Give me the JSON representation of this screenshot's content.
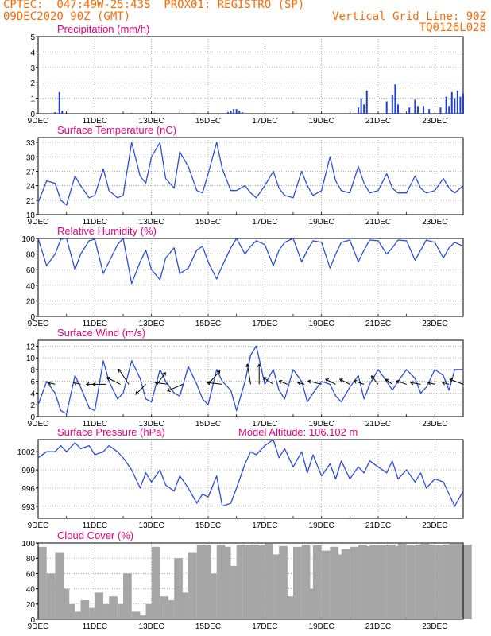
{
  "header": {
    "line1_left": "CPTEC:  047:49W-25:43S  PROX01: REGISTRO (SP)",
    "line2_left": "09DEC2020 90Z (GMT)",
    "line2_right": "Vertical Grid Line: 90Z",
    "line3_right": "TQ0126L028"
  },
  "colors": {
    "header_text": "#ff6a00",
    "title_text": "#e8007a",
    "series_line": "#2a4fd6",
    "precip_bars": "#1f3fd8",
    "cloud_bars": "#a6a6a6",
    "wind_arrows": "#000000"
  },
  "x_tick_labels": [
    "9DEC",
    "11DEC",
    "13DEC",
    "15DEC",
    "17DEC",
    "19DEC",
    "21DEC",
    "23DEC"
  ],
  "chart_data": [
    {
      "type": "bar",
      "title": "Precipitation (mm/h)",
      "ylim": [
        0,
        5
      ],
      "yticks": [
        0,
        1,
        2,
        3,
        4,
        5
      ],
      "x_range_days": [
        9,
        24
      ],
      "x": [
        9.6,
        9.75,
        9.85,
        12.3,
        13.1,
        14.5,
        15.7,
        15.8,
        15.9,
        16.0,
        16.1,
        16.2,
        20.3,
        20.4,
        20.5,
        20.6,
        21.3,
        21.5,
        21.6,
        21.7,
        22.1,
        22.3,
        22.4,
        22.6,
        22.8,
        23.2,
        23.4,
        23.5,
        23.6,
        23.7,
        23.8,
        23.9,
        24.0
      ],
      "values": [
        0.1,
        1.4,
        0.2,
        0.05,
        0.05,
        0.05,
        0.1,
        0.2,
        0.3,
        0.3,
        0.2,
        0.1,
        0.4,
        1.0,
        0.6,
        1.5,
        0.8,
        1.2,
        1.9,
        0.6,
        0.4,
        0.9,
        0.5,
        0.5,
        0.3,
        0.4,
        1.1,
        0.5,
        1.4,
        1.0,
        1.5,
        1.1,
        1.3
      ]
    },
    {
      "type": "line",
      "title": "Surface Temperature (nC)",
      "ylim": [
        18,
        34
      ],
      "yticks": [
        18,
        21,
        24,
        27,
        30,
        33
      ],
      "x": [
        9.0,
        9.3,
        9.6,
        9.8,
        10.0,
        10.3,
        10.5,
        10.8,
        11.0,
        11.3,
        11.5,
        11.8,
        12.0,
        12.3,
        12.6,
        12.8,
        13.0,
        13.3,
        13.5,
        13.8,
        14.0,
        14.3,
        14.6,
        14.8,
        15.0,
        15.3,
        15.5,
        15.8,
        16.0,
        16.3,
        16.5,
        16.7,
        17.0,
        17.3,
        17.5,
        17.7,
        18.0,
        18.3,
        18.5,
        18.7,
        19.0,
        19.3,
        19.5,
        19.7,
        20.0,
        20.3,
        20.5,
        20.7,
        21.0,
        21.3,
        21.5,
        21.7,
        22.0,
        22.3,
        22.5,
        22.7,
        23.0,
        23.3,
        23.5,
        23.7,
        24.0
      ],
      "values": [
        20.5,
        25.0,
        24.5,
        21.0,
        20.0,
        26.0,
        24.0,
        21.5,
        22.0,
        27.5,
        23.0,
        21.5,
        22.0,
        33.0,
        26.0,
        24.5,
        30.0,
        33.0,
        25.5,
        23.5,
        31.0,
        28.0,
        23.0,
        22.5,
        26.5,
        33.0,
        27.5,
        23.0,
        23.0,
        24.0,
        22.5,
        21.5,
        24.0,
        27.0,
        23.5,
        22.0,
        21.5,
        27.0,
        24.0,
        22.0,
        23.0,
        30.0,
        25.0,
        23.0,
        22.5,
        28.0,
        24.5,
        22.5,
        23.0,
        26.5,
        23.5,
        22.5,
        22.5,
        26.0,
        23.5,
        22.5,
        23.0,
        25.5,
        23.5,
        22.5,
        24.0
      ]
    },
    {
      "type": "line",
      "title": "Relative Humidity (%)",
      "ylim": [
        0,
        100
      ],
      "yticks": [
        0,
        20,
        40,
        60,
        80,
        100
      ],
      "x": [
        9.0,
        9.3,
        9.6,
        9.8,
        10.0,
        10.3,
        10.5,
        10.8,
        11.0,
        11.3,
        11.5,
        11.8,
        12.0,
        12.3,
        12.6,
        12.8,
        13.0,
        13.3,
        13.5,
        13.8,
        14.0,
        14.3,
        14.6,
        14.8,
        15.0,
        15.3,
        15.5,
        15.8,
        16.0,
        16.3,
        16.5,
        16.7,
        17.0,
        17.3,
        17.5,
        17.7,
        18.0,
        18.3,
        18.5,
        18.7,
        19.0,
        19.3,
        19.5,
        19.7,
        20.0,
        20.3,
        20.5,
        20.7,
        21.0,
        21.3,
        21.5,
        21.7,
        22.0,
        22.3,
        22.5,
        22.7,
        23.0,
        23.3,
        23.5,
        23.7,
        24.0
      ],
      "values": [
        100.0,
        65.0,
        80.0,
        99.0,
        100.0,
        60.0,
        80.0,
        97.0,
        99.0,
        55.0,
        70.0,
        92.0,
        100.0,
        42.0,
        70.0,
        85.0,
        60.0,
        47.0,
        75.0,
        88.0,
        55.0,
        62.0,
        85.0,
        90.0,
        70.0,
        48.0,
        65.0,
        88.0,
        100.0,
        80.0,
        90.0,
        97.0,
        92.0,
        65.0,
        85.0,
        95.0,
        100.0,
        70.0,
        85.0,
        97.0,
        95.0,
        62.0,
        80.0,
        95.0,
        98.0,
        70.0,
        85.0,
        98.0,
        97.0,
        80.0,
        88.0,
        98.0,
        97.0,
        72.0,
        85.0,
        98.0,
        95.0,
        75.0,
        88.0,
        95.0,
        90.0
      ]
    },
    {
      "type": "line",
      "title": "Surface Wind (m/s)",
      "ylim": [
        0,
        13
      ],
      "yticks": [
        0,
        2,
        4,
        6,
        8,
        10,
        12
      ],
      "x": [
        9.0,
        9.3,
        9.6,
        9.8,
        10.0,
        10.3,
        10.5,
        10.8,
        11.0,
        11.3,
        11.5,
        11.8,
        12.0,
        12.3,
        12.6,
        12.8,
        13.0,
        13.3,
        13.5,
        13.8,
        14.0,
        14.3,
        14.6,
        14.8,
        15.0,
        15.3,
        15.5,
        15.8,
        16.0,
        16.3,
        16.5,
        16.7,
        17.0,
        17.3,
        17.5,
        17.7,
        18.0,
        18.3,
        18.5,
        18.7,
        19.0,
        19.3,
        19.5,
        19.7,
        20.0,
        20.3,
        20.5,
        20.7,
        21.0,
        21.3,
        21.5,
        21.7,
        22.0,
        22.3,
        22.5,
        22.7,
        23.0,
        23.3,
        23.5,
        23.7,
        24.0
      ],
      "values": [
        2.0,
        6.0,
        4.0,
        1.0,
        0.5,
        7.0,
        5.0,
        1.5,
        1.0,
        9.5,
        6.0,
        3.0,
        4.0,
        9.5,
        6.5,
        3.0,
        2.5,
        8.0,
        6.0,
        4.0,
        3.5,
        8.5,
        5.5,
        3.0,
        2.0,
        8.0,
        6.0,
        4.5,
        1.0,
        6.0,
        10.5,
        12.0,
        5.5,
        8.0,
        4.5,
        3.0,
        8.0,
        6.0,
        2.5,
        4.0,
        6.0,
        5.5,
        3.5,
        2.5,
        5.0,
        7.0,
        3.0,
        5.5,
        8.0,
        6.0,
        4.5,
        6.0,
        8.0,
        6.5,
        4.0,
        5.0,
        8.0,
        7.0,
        4.5,
        8.0,
        8.0
      ],
      "wind_vectors": {
        "x": [
          9.6,
          10.5,
          11.0,
          11.4,
          11.9,
          12.2,
          12.8,
          13.2,
          13.6,
          14.1,
          15.0,
          15.5,
          16.5,
          16.8,
          17.3,
          17.8,
          18.4,
          19.0,
          19.5,
          20.0,
          20.5,
          21.0,
          21.5,
          22.0,
          22.5,
          23.0,
          23.5,
          24.0
        ],
        "u": [
          -2.0,
          -2.0,
          -2.5,
          -4.0,
          -4.0,
          -3.0,
          -3.0,
          2.5,
          -4.0,
          -4.5,
          3.5,
          -4.5,
          -1.0,
          0.0,
          -3.0,
          -2.5,
          -2.0,
          -4.0,
          -3.0,
          -3.0,
          -3.0,
          -2.0,
          -2.0,
          -3.0,
          -3.0,
          -2.0,
          -2.0,
          -4.0
        ],
        "v": [
          0.5,
          0.5,
          0.0,
          0.0,
          2.0,
          4.5,
          -3.0,
          3.5,
          0.5,
          -2.0,
          4.0,
          0.5,
          6.0,
          6.0,
          2.0,
          1.0,
          0.5,
          1.0,
          1.5,
          1.5,
          1.0,
          2.5,
          1.5,
          1.0,
          0.5,
          0.5,
          0.5,
          1.5
        ]
      }
    },
    {
      "type": "line",
      "title": "Surface Pressure (hPa)",
      "subtitle": "Model Altitude: 106.102  m",
      "ylim": [
        991,
        1004
      ],
      "yticks": [
        993,
        996,
        999,
        1002
      ],
      "x": [
        9.0,
        9.3,
        9.6,
        9.8,
        10.0,
        10.3,
        10.5,
        10.8,
        11.0,
        11.3,
        11.5,
        11.8,
        12.0,
        12.3,
        12.6,
        12.8,
        13.0,
        13.3,
        13.5,
        13.8,
        14.0,
        14.3,
        14.6,
        14.8,
        15.0,
        15.3,
        15.5,
        15.8,
        16.0,
        16.3,
        16.5,
        16.7,
        17.0,
        17.3,
        17.5,
        17.7,
        18.0,
        18.3,
        18.5,
        18.7,
        19.0,
        19.3,
        19.5,
        19.7,
        20.0,
        20.3,
        20.5,
        20.7,
        21.0,
        21.3,
        21.5,
        21.7,
        22.0,
        22.3,
        22.5,
        22.7,
        23.0,
        23.3,
        23.5,
        23.7,
        24.0
      ],
      "values": [
        1001.0,
        1002.0,
        1002.0,
        1003.0,
        1002.0,
        1003.5,
        1002.5,
        1003.0,
        1001.5,
        1002.0,
        1003.0,
        1002.0,
        1001.0,
        999.0,
        996.0,
        998.5,
        997.0,
        999.0,
        996.5,
        995.5,
        998.0,
        996.0,
        993.5,
        995.0,
        994.5,
        998.0,
        993.0,
        993.5,
        996.0,
        1000.0,
        1002.0,
        1001.5,
        1003.0,
        1004.0,
        1001.0,
        1002.5,
        999.5,
        1002.0,
        998.5,
        1001.5,
        998.0,
        1000.0,
        997.5,
        1000.5,
        997.5,
        999.5,
        998.5,
        1000.5,
        999.5,
        998.5,
        1000.5,
        997.5,
        999.0,
        997.0,
        998.5,
        996.0,
        997.5,
        997.0,
        995.0,
        993.0,
        995.5
      ]
    },
    {
      "type": "bar",
      "title": "Cloud Cover (%)",
      "ylim": [
        0,
        100
      ],
      "yticks": [
        0,
        20,
        40,
        60,
        80,
        100
      ],
      "x": [
        9.0,
        9.3,
        9.6,
        9.8,
        10.0,
        10.3,
        10.5,
        10.8,
        11.0,
        11.3,
        11.5,
        11.8,
        12.0,
        12.3,
        12.6,
        12.8,
        13.0,
        13.3,
        13.5,
        13.8,
        14.0,
        14.3,
        14.6,
        14.8,
        15.0,
        15.3,
        15.5,
        15.8,
        16.0,
        16.3,
        16.5,
        16.7,
        17.0,
        17.3,
        17.5,
        17.7,
        18.0,
        18.3,
        18.5,
        18.7,
        19.0,
        19.3,
        19.5,
        19.7,
        20.0,
        20.3,
        20.5,
        20.7,
        21.0,
        21.3,
        21.5,
        21.7,
        22.0,
        22.3,
        22.5,
        22.7,
        23.0,
        23.3,
        23.5,
        23.7,
        24.0
      ],
      "values": [
        95.0,
        60.0,
        88.0,
        40.0,
        20.0,
        10.0,
        25.0,
        15.0,
        35.0,
        20.0,
        30.0,
        20.0,
        60.0,
        10.0,
        5.0,
        20.0,
        95.0,
        30.0,
        25.0,
        80.0,
        35.0,
        88.0,
        98.0,
        97.0,
        60.0,
        98.0,
        95.0,
        70.0,
        98.0,
        97.0,
        98.0,
        97.0,
        99.0,
        85.0,
        96.0,
        30.0,
        95.0,
        98.0,
        40.0,
        97.0,
        90.0,
        95.0,
        85.0,
        92.0,
        95.0,
        98.0,
        96.0,
        97.0,
        97.0,
        98.0,
        96.0,
        99.0,
        97.0,
        98.0,
        99.0,
        98.0,
        97.0,
        98.0,
        99.0,
        99.0,
        98.0
      ]
    }
  ]
}
